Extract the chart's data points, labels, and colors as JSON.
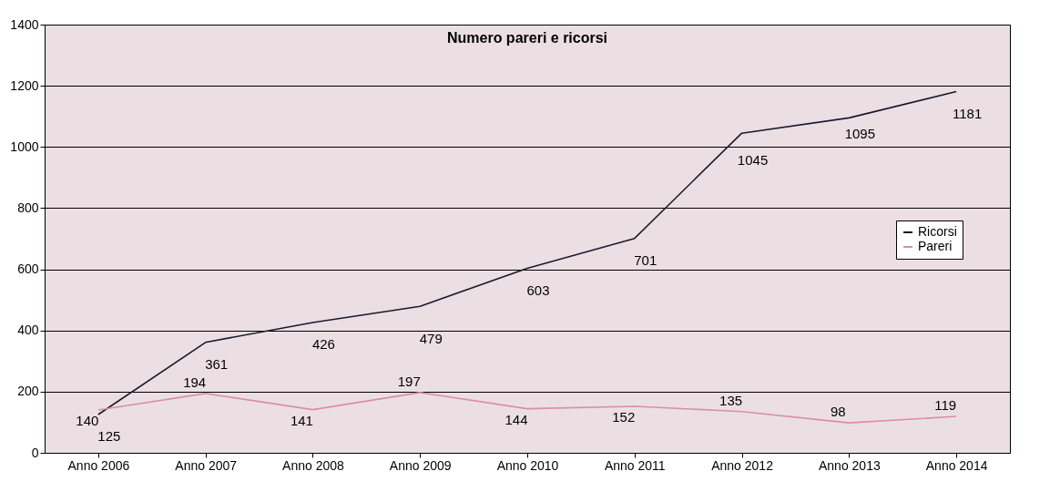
{
  "chart_data": {
    "type": "line",
    "title": "Numero pareri e ricorsi",
    "categories": [
      "Anno 2006",
      "Anno 2007",
      "Anno 2008",
      "Anno 2009",
      "Anno 2010",
      "Anno 2011",
      "Anno 2012",
      "Anno 2013",
      "Anno 2014"
    ],
    "series": [
      {
        "name": "Ricorsi",
        "color": "#1a1a2e",
        "values": [
          125,
          361,
          426,
          479,
          603,
          701,
          1045,
          1095,
          1181
        ]
      },
      {
        "name": "Pareri",
        "color": "#d990a4",
        "values": [
          140,
          194,
          141,
          197,
          144,
          152,
          135,
          98,
          119
        ]
      }
    ],
    "ylim": [
      0,
      1400
    ],
    "yticks": [
      0,
      200,
      400,
      600,
      800,
      1000,
      1200,
      1400
    ],
    "grid": "y",
    "legend": "right",
    "data_labels": true,
    "marker": "none"
  }
}
